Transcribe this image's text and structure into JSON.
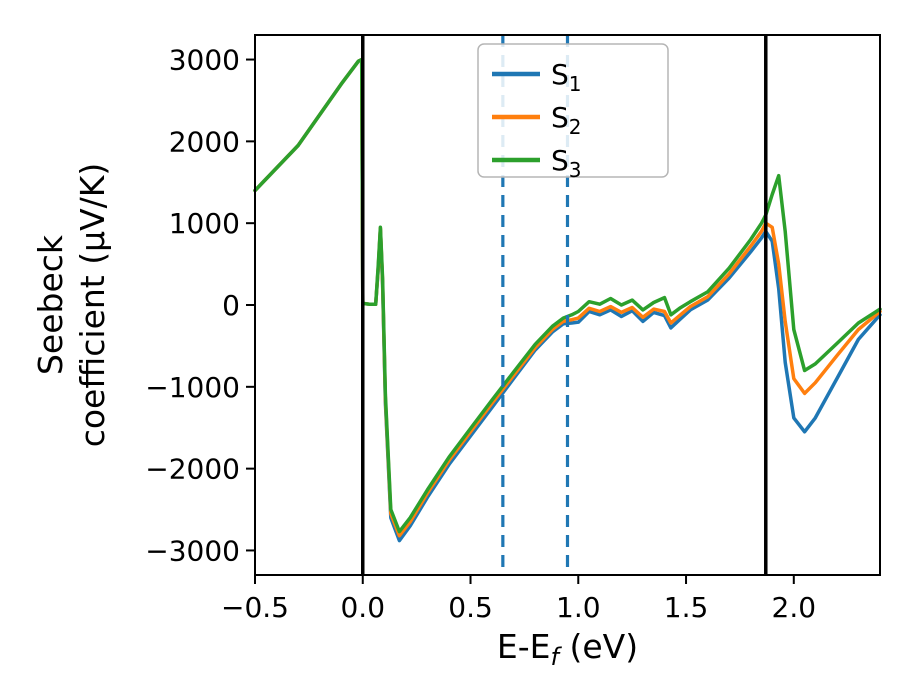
{
  "chart_data": {
    "type": "line",
    "title": "",
    "xlabel": {
      "main": "E-E",
      "sub": "f",
      "suffix": " (eV)"
    },
    "ylabel_lines": [
      "Seebeck",
      "coefficient  (μV/K)"
    ],
    "xlim": [
      -0.5,
      2.4
    ],
    "ylim": [
      -3300,
      3300
    ],
    "xticks": [
      -0.5,
      0.0,
      0.5,
      1.0,
      1.5,
      2.0
    ],
    "xtick_labels": [
      "−0.5",
      "0.0",
      "0.5",
      "1.0",
      "1.5",
      "2.0"
    ],
    "yticks": [
      -3000,
      -2000,
      -1000,
      0,
      1000,
      2000,
      3000
    ],
    "ytick_labels": [
      "−3000",
      "−2000",
      "−1000",
      "0",
      "1000",
      "2000",
      "3000"
    ],
    "grid": false,
    "legend": {
      "position": "upper-center",
      "entries": [
        {
          "label": "S",
          "sub": "1"
        },
        {
          "label": "S",
          "sub": "2"
        },
        {
          "label": "S",
          "sub": "3"
        }
      ]
    },
    "vlines": {
      "solid": {
        "color": "#000000",
        "x": [
          0.0,
          1.87
        ]
      },
      "dashed": {
        "color": "#1f77b4",
        "x": [
          0.65,
          0.95
        ]
      }
    },
    "x": [
      -0.5,
      -0.3,
      -0.1,
      -0.02,
      -0.005,
      0.0,
      0.03,
      0.06,
      0.072,
      0.082,
      0.092,
      0.105,
      0.13,
      0.17,
      0.22,
      0.3,
      0.4,
      0.5,
      0.6,
      0.7,
      0.8,
      0.88,
      0.93,
      0.97,
      1.0,
      1.05,
      1.1,
      1.15,
      1.2,
      1.25,
      1.3,
      1.35,
      1.4,
      1.43,
      1.47,
      1.52,
      1.6,
      1.7,
      1.8,
      1.85,
      1.87,
      1.9,
      1.93,
      1.96,
      2.0,
      2.05,
      2.1,
      2.2,
      2.3,
      2.4
    ],
    "series": [
      {
        "name": "S1",
        "color": "#1f77b4",
        "values": [
          1400,
          1950,
          2700,
          2980,
          3000,
          20,
          10,
          10,
          450,
          930,
          250,
          -1200,
          -2600,
          -2880,
          -2700,
          -2350,
          -1950,
          -1600,
          -1250,
          -900,
          -550,
          -330,
          -230,
          -220,
          -210,
          -80,
          -120,
          -60,
          -140,
          -70,
          -200,
          -90,
          -130,
          -280,
          -180,
          -60,
          60,
          330,
          650,
          820,
          900,
          780,
          200,
          -700,
          -1380,
          -1550,
          -1380,
          -900,
          -420,
          -120
        ]
      },
      {
        "name": "S2",
        "color": "#ff7f0e",
        "values": [
          1400,
          1950,
          2700,
          2980,
          3000,
          20,
          10,
          10,
          470,
          940,
          280,
          -1150,
          -2550,
          -2820,
          -2650,
          -2300,
          -1900,
          -1550,
          -1200,
          -860,
          -520,
          -300,
          -200,
          -180,
          -160,
          -40,
          -80,
          -20,
          -90,
          -30,
          -150,
          -50,
          -80,
          -220,
          -130,
          -20,
          100,
          380,
          720,
          900,
          1000,
          950,
          500,
          -200,
          -900,
          -1080,
          -950,
          -620,
          -300,
          -80
        ]
      },
      {
        "name": "S3",
        "color": "#2ca02c",
        "values": [
          1400,
          1950,
          2700,
          2980,
          3000,
          20,
          10,
          10,
          500,
          950,
          320,
          -1100,
          -2500,
          -2770,
          -2600,
          -2260,
          -1860,
          -1510,
          -1160,
          -820,
          -480,
          -260,
          -160,
          -120,
          -80,
          40,
          10,
          80,
          0,
          60,
          -60,
          30,
          90,
          -120,
          -40,
          40,
          160,
          450,
          800,
          1000,
          1100,
          1350,
          1580,
          900,
          -300,
          -800,
          -720,
          -470,
          -220,
          -50
        ]
      }
    ]
  }
}
